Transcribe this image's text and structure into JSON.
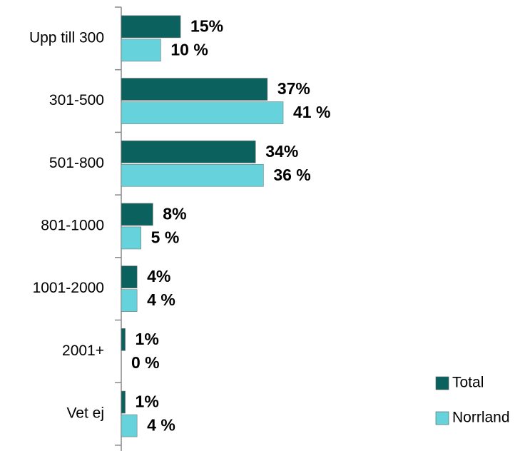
{
  "chart_data": {
    "type": "bar",
    "orientation": "horizontal",
    "categories": [
      "Upp till 300",
      "301-500",
      "501-800",
      "801-1000",
      "1001-2000",
      "2001+",
      "Vet ej"
    ],
    "series": [
      {
        "name": "Total",
        "color": "#0b615e",
        "values": [
          15,
          37,
          34,
          8,
          4,
          1,
          1
        ],
        "value_labels": [
          "15%",
          "37%",
          "34%",
          "8%",
          "4%",
          "1%",
          "1%"
        ]
      },
      {
        "name": "Norrland",
        "color": "#66d3dc",
        "values": [
          10,
          41,
          36,
          5,
          4,
          0,
          4
        ],
        "value_labels": [
          "10 %",
          "41 %",
          "36 %",
          "5 %",
          "4 %",
          "0 %",
          "4 %"
        ]
      }
    ],
    "legend": "lower right"
  }
}
